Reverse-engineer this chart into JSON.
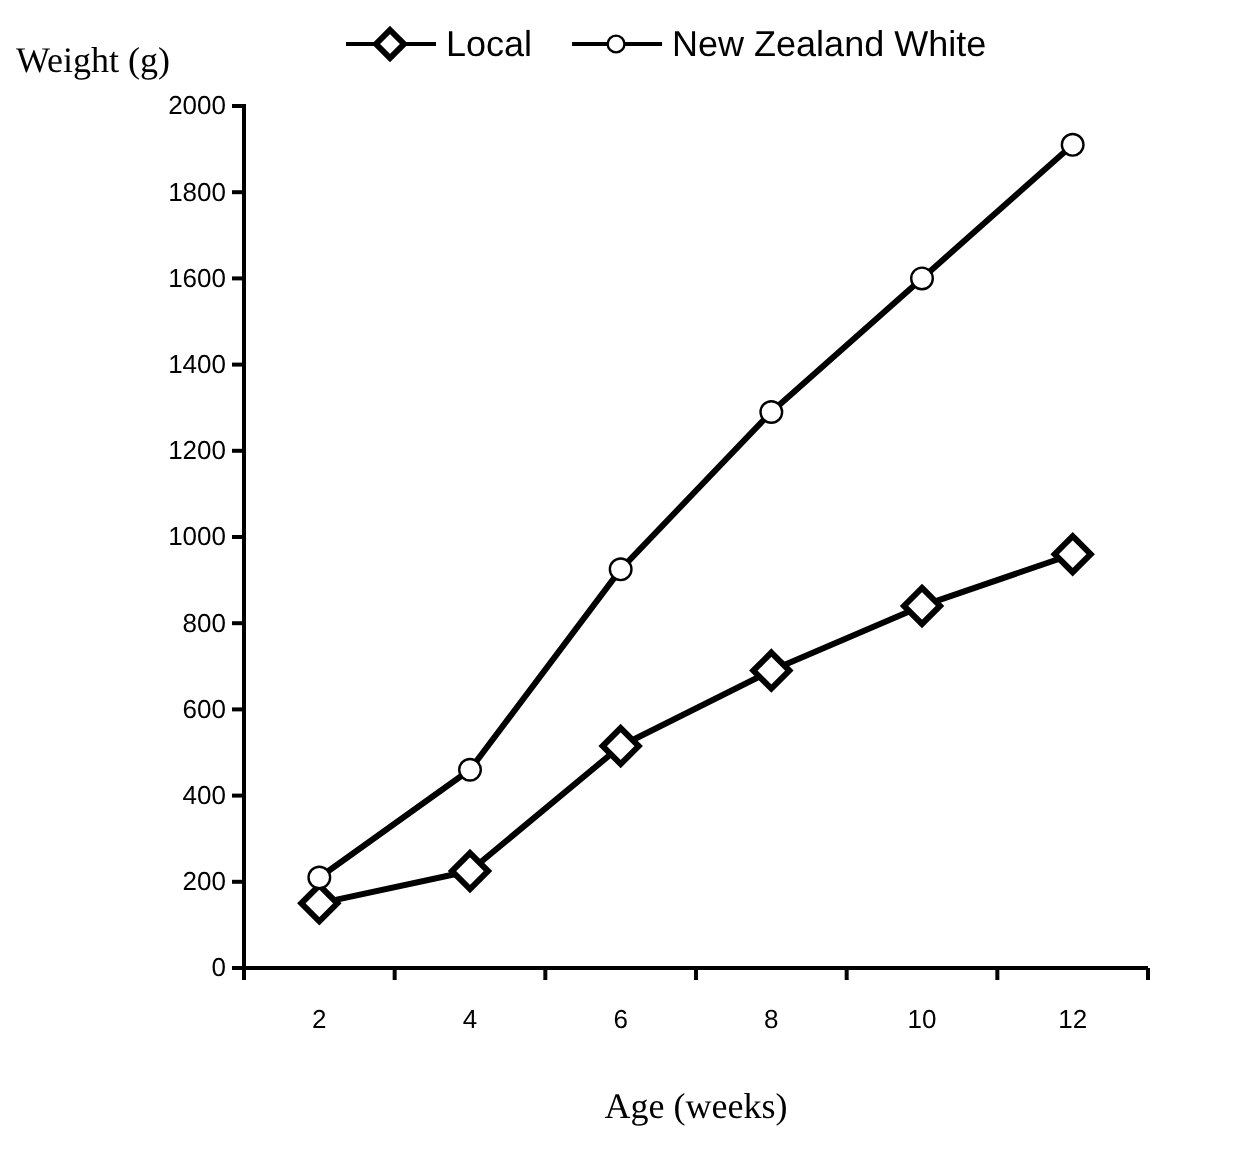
{
  "chart_data": {
    "type": "line",
    "xlabel": "Age (weeks)",
    "ylabel": "Weight (g)",
    "categories": [
      "2",
      "4",
      "6",
      "8",
      "10",
      "12"
    ],
    "ylim": [
      0,
      2000
    ],
    "yticks": [
      0,
      200,
      400,
      600,
      800,
      1000,
      1200,
      1400,
      1600,
      1800,
      2000
    ],
    "grid": false,
    "legend": "top",
    "line_style": "solid",
    "series": [
      {
        "name": "Local",
        "color": "#000000",
        "marker": "diamond",
        "values": [
          150,
          225,
          515,
          690,
          840,
          960
        ]
      },
      {
        "name": "New Zealand White",
        "color": "#000000",
        "marker": "circle",
        "values": [
          210,
          460,
          925,
          1290,
          1600,
          1910
        ]
      }
    ]
  }
}
